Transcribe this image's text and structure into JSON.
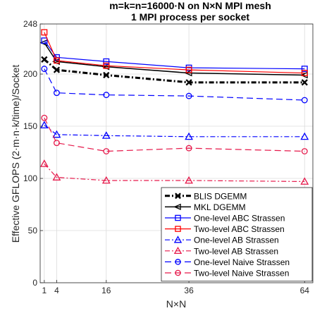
{
  "chart_data": {
    "type": "line",
    "title": [
      "m=k=n=16000·N on N×N MPI mesh",
      "1 MPI process per socket"
    ],
    "xlabel": "N×N",
    "ylabel": "Effective GFLOPS (2·m·n·k/time)/Socket",
    "x": [
      1,
      4,
      16,
      36,
      64
    ],
    "xticks": [
      "1",
      "4",
      "16",
      "36",
      "64"
    ],
    "xlim": [
      0,
      66
    ],
    "ylim": [
      0,
      248
    ],
    "yticks": [
      0,
      50,
      100,
      150,
      200,
      248
    ],
    "grid": true,
    "legend_position": "bottom-right",
    "series": [
      {
        "name": "BLIS DGEMM",
        "values": [
          214,
          204,
          199,
          192,
          192
        ],
        "color": "#000000",
        "dash": "7,3,2,3",
        "marker": "x",
        "width": 3
      },
      {
        "name": "MKL DGEMM",
        "values": [
          230,
          212,
          207,
          201,
          199
        ],
        "color": "#000000",
        "dash": "",
        "marker": "<",
        "width": 1.5
      },
      {
        "name": "One-level ABC Strassen",
        "values": [
          232,
          216,
          212,
          206,
          205
        ],
        "color": "#0000ff",
        "dash": "",
        "marker": "s",
        "width": 1.2
      },
      {
        "name": "Two-level ABC Strassen",
        "values": [
          240,
          213,
          208,
          204,
          201
        ],
        "color": "#ff0000",
        "dash": "",
        "marker": "s",
        "width": 1.2
      },
      {
        "name": "One-level AB Strassen",
        "values": [
          151,
          142,
          141,
          140,
          140
        ],
        "color": "#0000ff",
        "dash": "7,3,2,3",
        "marker": "^",
        "width": 1.2
      },
      {
        "name": "Two-level AB Strassen",
        "values": [
          114,
          101,
          98,
          98,
          97
        ],
        "color": "#e6194b",
        "dash": "7,3,2,3",
        "marker": "^",
        "width": 1.2
      },
      {
        "name": "One-level Naive Strassen",
        "values": [
          205,
          182,
          180,
          179,
          175
        ],
        "color": "#0000ff",
        "dash": "9,5",
        "marker": "o",
        "width": 1.2
      },
      {
        "name": "Two-level Naive Strassen",
        "values": [
          158,
          134,
          126,
          129,
          126
        ],
        "color": "#e6194b",
        "dash": "9,5",
        "marker": "o",
        "width": 1.2
      }
    ]
  }
}
